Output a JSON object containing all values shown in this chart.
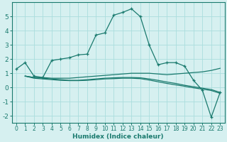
{
  "xlabel": "Humidex (Indice chaleur)",
  "bg_color": "#d6f0f0",
  "grid_color": "#aadddd",
  "line_color": "#1a7a6e",
  "xlim": [
    -0.5,
    23.5
  ],
  "ylim": [
    -2.5,
    6.0
  ],
  "xticks": [
    0,
    1,
    2,
    3,
    4,
    5,
    6,
    7,
    8,
    9,
    10,
    11,
    12,
    13,
    14,
    15,
    16,
    17,
    18,
    19,
    20,
    21,
    22,
    23
  ],
  "yticks": [
    -2,
    -1,
    0,
    1,
    2,
    3,
    4,
    5
  ],
  "series": {
    "main": {
      "x": [
        0,
        1,
        2,
        3,
        4,
        5,
        6,
        7,
        8,
        9,
        10,
        11,
        12,
        13,
        14,
        15,
        16,
        17,
        18,
        19,
        20,
        21,
        22,
        23
      ],
      "y": [
        1.3,
        1.75,
        0.8,
        0.7,
        1.9,
        2.0,
        2.1,
        2.3,
        2.35,
        3.7,
        3.85,
        5.1,
        5.3,
        5.55,
        5.0,
        3.0,
        1.6,
        1.75,
        1.75,
        1.5,
        0.5,
        -0.2,
        -2.1,
        -0.35
      ]
    },
    "flat1": {
      "x": [
        1,
        2,
        3,
        4,
        5,
        6,
        7,
        8,
        9,
        10,
        11,
        12,
        13,
        14,
        15,
        16,
        17,
        18,
        19,
        20,
        21,
        22,
        23
      ],
      "y": [
        0.8,
        0.7,
        0.7,
        0.65,
        0.65,
        0.65,
        0.7,
        0.75,
        0.8,
        0.85,
        0.9,
        0.95,
        1.0,
        1.0,
        1.0,
        0.95,
        0.9,
        0.95,
        1.0,
        1.05,
        1.1,
        1.2,
        1.35
      ]
    },
    "flat2": {
      "x": [
        1,
        2,
        3,
        4,
        5,
        6,
        7,
        8,
        9,
        10,
        11,
        12,
        13,
        14,
        15,
        16,
        17,
        18,
        19,
        20,
        21,
        22,
        23
      ],
      "y": [
        0.8,
        0.7,
        0.65,
        0.6,
        0.55,
        0.5,
        0.5,
        0.55,
        0.6,
        0.65,
        0.68,
        0.7,
        0.7,
        0.68,
        0.6,
        0.5,
        0.38,
        0.28,
        0.15,
        0.05,
        -0.05,
        -0.15,
        -0.35
      ]
    },
    "flat3": {
      "x": [
        1,
        2,
        3,
        4,
        5,
        6,
        7,
        8,
        9,
        10,
        11,
        12,
        13,
        14,
        15,
        16,
        17,
        18,
        19,
        20,
        21,
        22,
        23
      ],
      "y": [
        0.8,
        0.65,
        0.6,
        0.55,
        0.5,
        0.48,
        0.48,
        0.5,
        0.55,
        0.6,
        0.62,
        0.65,
        0.65,
        0.62,
        0.52,
        0.4,
        0.28,
        0.18,
        0.08,
        -0.03,
        -0.12,
        -0.22,
        -0.42
      ]
    }
  }
}
